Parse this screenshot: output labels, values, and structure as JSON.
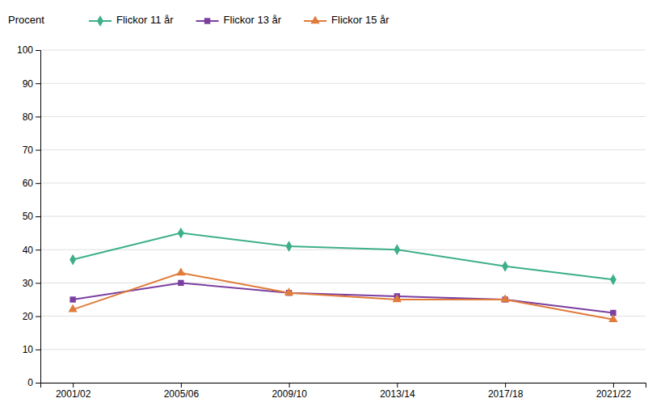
{
  "chart_data": {
    "type": "line",
    "y_label": "Procent",
    "categories": [
      "2001/02",
      "2005/06",
      "2009/10",
      "2013/14",
      "2017/18",
      "2021/22"
    ],
    "series": [
      {
        "name": "Flickor 11 år",
        "color": "#3daf8a",
        "marker": "diamond",
        "values": [
          37,
          45,
          41,
          40,
          35,
          31
        ]
      },
      {
        "name": "Flickor 13 år",
        "color": "#7b3fa0",
        "marker": "square",
        "values": [
          25,
          30,
          27,
          26,
          25,
          21
        ]
      },
      {
        "name": "Flickor 15 år",
        "color": "#e07b39",
        "marker": "triangle",
        "values": [
          22,
          33,
          27,
          25,
          25,
          19
        ]
      }
    ],
    "ylim": [
      0,
      100
    ],
    "yticks": [
      0,
      10,
      20,
      30,
      40,
      50,
      60,
      70,
      80,
      90,
      100
    ],
    "grid": true,
    "legend": "top"
  }
}
